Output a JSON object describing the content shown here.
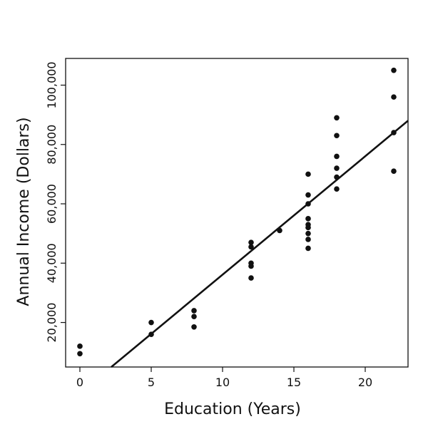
{
  "chart_data": {
    "type": "scatter",
    "title": "",
    "xlabel": "Education (Years)",
    "ylabel": "Annual Income (Dollars)",
    "xlim": [
      -1,
      23
    ],
    "ylim": [
      5000,
      109000
    ],
    "x_ticks": [
      0,
      5,
      10,
      15,
      20
    ],
    "x_tick_labels": [
      "0",
      "5",
      "10",
      "15",
      "20"
    ],
    "y_ticks": [
      20000,
      40000,
      60000,
      80000,
      100000
    ],
    "y_tick_labels": [
      "20,000",
      "40,000",
      "60,000",
      "80,000",
      "100,000"
    ],
    "grid": false,
    "legend": "none",
    "marker_color": "#111111",
    "series": [
      {
        "points": [
          {
            "x": 0,
            "y": 12000
          },
          {
            "x": 0,
            "y": 9500
          },
          {
            "x": 5,
            "y": 20000
          },
          {
            "x": 5,
            "y": 16000
          },
          {
            "x": 8,
            "y": 24000
          },
          {
            "x": 8,
            "y": 22000
          },
          {
            "x": 8,
            "y": 18500
          },
          {
            "x": 12,
            "y": 47000
          },
          {
            "x": 12,
            "y": 45500
          },
          {
            "x": 12,
            "y": 40000
          },
          {
            "x": 12,
            "y": 39000
          },
          {
            "x": 12,
            "y": 35000
          },
          {
            "x": 14,
            "y": 51000
          },
          {
            "x": 16,
            "y": 70000
          },
          {
            "x": 16,
            "y": 63000
          },
          {
            "x": 16,
            "y": 60000
          },
          {
            "x": 16,
            "y": 55000
          },
          {
            "x": 16,
            "y": 53000
          },
          {
            "x": 16,
            "y": 52000
          },
          {
            "x": 16,
            "y": 50000
          },
          {
            "x": 16,
            "y": 48000
          },
          {
            "x": 16,
            "y": 45000
          },
          {
            "x": 18,
            "y": 89000
          },
          {
            "x": 18,
            "y": 83000
          },
          {
            "x": 18,
            "y": 76000
          },
          {
            "x": 18,
            "y": 72000
          },
          {
            "x": 18,
            "y": 69000
          },
          {
            "x": 18,
            "y": 65000
          },
          {
            "x": 22,
            "y": 105000
          },
          {
            "x": 22,
            "y": 96000
          },
          {
            "x": 22,
            "y": 84000
          },
          {
            "x": 22,
            "y": 71000
          }
        ]
      }
    ],
    "regression_line": {
      "x": [
        2.2,
        23
      ],
      "y": [
        5000,
        88000
      ]
    }
  }
}
